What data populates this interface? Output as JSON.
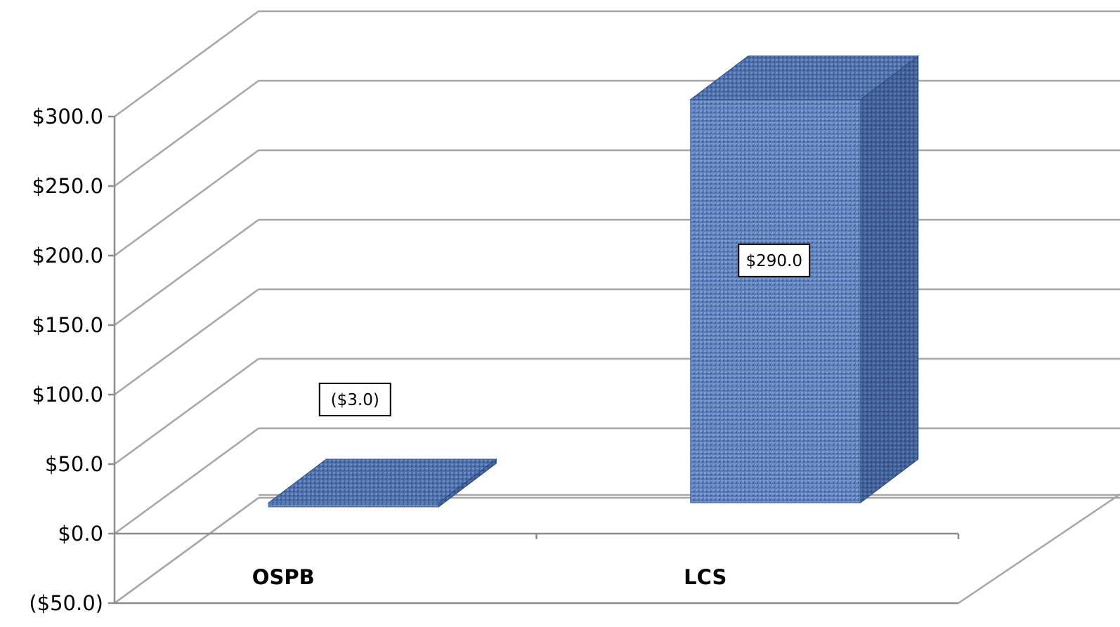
{
  "chart_data": {
    "type": "bar",
    "style": "3d-column",
    "categories": [
      "OSPB",
      "LCS"
    ],
    "values": [
      -3.0,
      290.0
    ],
    "data_labels": [
      "($3.0)",
      "$290.0"
    ],
    "ylim": [
      -50,
      300
    ],
    "yticks": [
      -50,
      0,
      50,
      100,
      150,
      200,
      250,
      300
    ],
    "ytick_labels": [
      "($50.0)",
      "$0.0",
      "$50.0",
      "$100.0",
      "$150.0",
      "$200.0",
      "$250.0",
      "$300.0"
    ],
    "grid": true,
    "legend": "none",
    "colors": {
      "bar_front": "#5b7fbd",
      "bar_side": "#3f5f97",
      "bar_top": "#4c6ea9",
      "gridline": "#a6a6a6"
    }
  }
}
